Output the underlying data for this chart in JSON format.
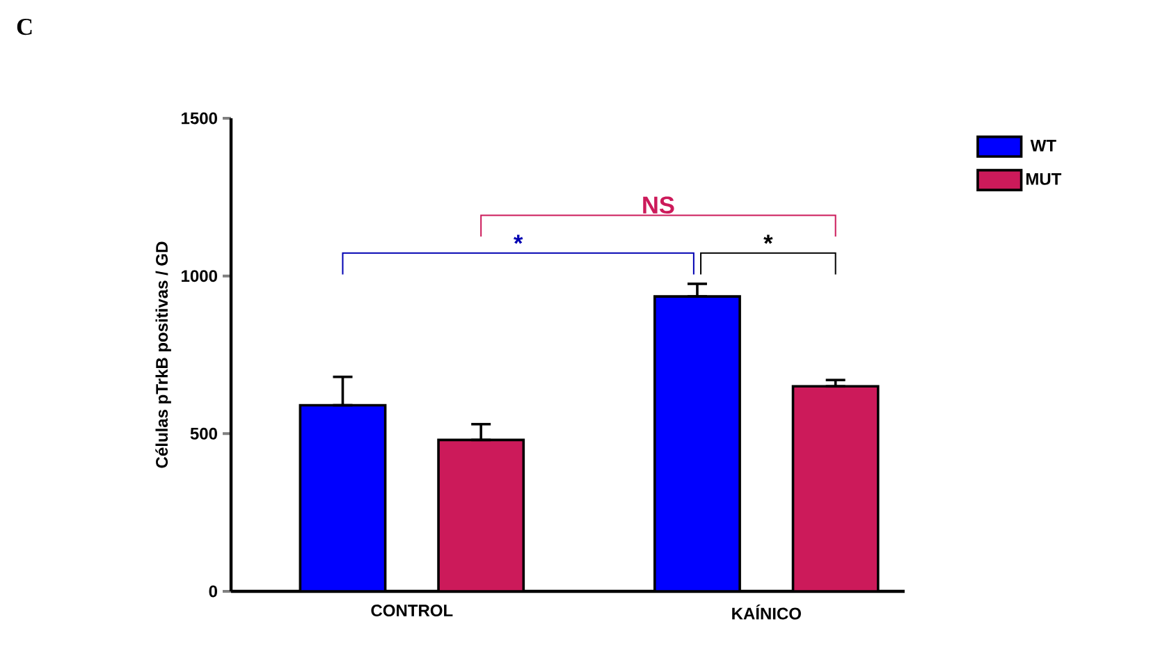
{
  "chart_data": {
    "type": "bar",
    "ylabel": "Células pTrkB positivas / GD",
    "categories": [
      "CONTROL",
      "KAÍNICO"
    ],
    "series": [
      {
        "name": "WT",
        "color": "#0000ff",
        "values": [
          590,
          935
        ],
        "errors": [
          [
            590,
            680
          ],
          [
            935,
            975
          ]
        ]
      },
      {
        "name": "MUT",
        "color": "#cc1a5a",
        "values": [
          480,
          650
        ],
        "errors": [
          [
            480,
            530
          ],
          [
            650,
            670
          ]
        ]
      }
    ],
    "ylim": [
      0,
      1500
    ],
    "yticks": [
      0,
      500,
      1000,
      1500
    ],
    "grid": false,
    "legend": "top right",
    "annotations": [
      "C",
      "*",
      "NS",
      "*"
    ]
  }
}
